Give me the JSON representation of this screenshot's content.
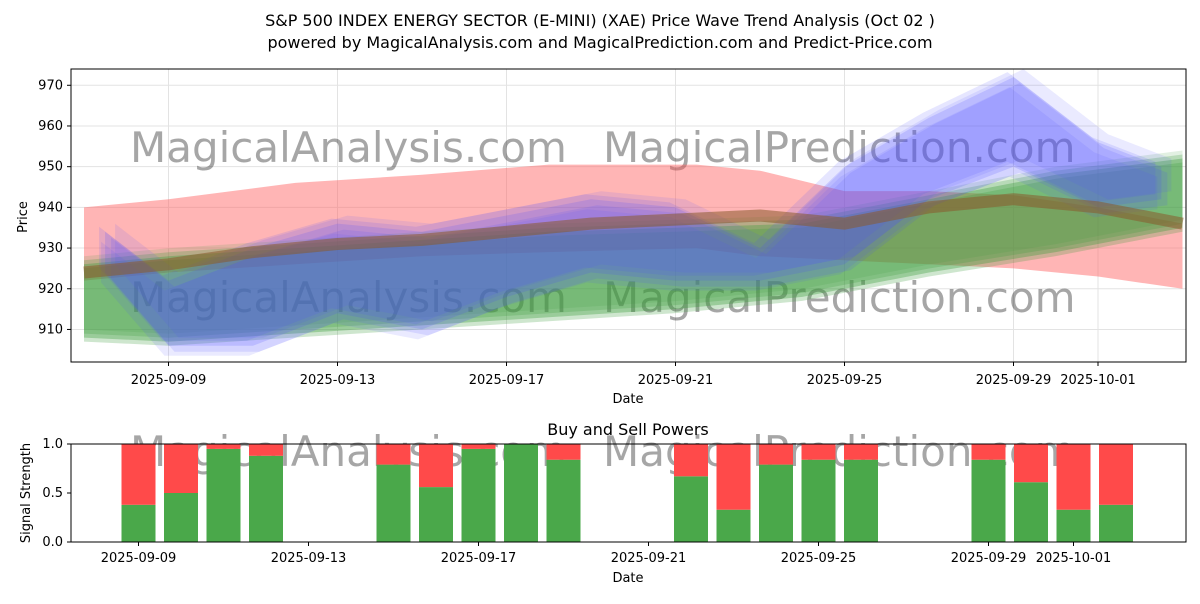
{
  "title_line1": "S&P 500 INDEX ENERGY SECTOR (E-MINI) (XAE) Price Wave Trend Analysis (Oct 02 )",
  "title_line2": "powered by MagicalAnalysis.com and MagicalPrediction.com and Predict-Price.com",
  "watermarks": [
    "MagicalAnalysis.com",
    "MagicalPrediction.com",
    "MagicalAnalysis.com",
    "MagicalPrediction.com"
  ],
  "colors": {
    "red_band": "#ff5a5a",
    "green_band": "#3a9a3a",
    "blue_band": "#5050ff",
    "brown_line": "#8b5a2b",
    "buy": "#4aa84a",
    "sell": "#ff4a4a"
  },
  "chart_data": [
    {
      "type": "area",
      "title": "",
      "xlabel": "Date",
      "ylabel": "Price",
      "ylim": [
        902,
        974
      ],
      "x_tick_labels": [
        "2025-09-09",
        "2025-09-13",
        "2025-09-17",
        "2025-09-21",
        "2025-09-25",
        "2025-09-29",
        "2025-10-01"
      ],
      "x_tick_days": [
        2,
        6,
        10,
        14,
        18,
        22,
        24
      ],
      "y_ticks": [
        910,
        920,
        930,
        940,
        950,
        960,
        970
      ],
      "series": [
        {
          "name": "red_band",
          "x": [
            0,
            2,
            5,
            8,
            11,
            14.5,
            16,
            18,
            20,
            22,
            24,
            26
          ],
          "upper": [
            940,
            942,
            946,
            948,
            950.5,
            950.5,
            949,
            944,
            944,
            943,
            940,
            936
          ],
          "lower": [
            922,
            924,
            926,
            928,
            929,
            930,
            928,
            927,
            926,
            925,
            923,
            920
          ]
        },
        {
          "name": "green_band",
          "x": [
            0,
            2,
            5,
            8,
            11,
            14,
            17,
            20,
            23,
            26
          ],
          "upper": [
            926,
            928,
            930,
            932,
            934,
            935,
            936,
            942,
            948,
            952
          ],
          "lower": [
            908,
            907,
            909,
            911,
            913,
            915,
            918,
            924,
            929,
            935
          ]
        },
        {
          "name": "blue_band",
          "x": [
            0.5,
            2,
            4,
            6,
            8,
            10,
            12,
            14,
            16,
            18,
            20,
            22,
            24,
            25.5
          ],
          "upper": [
            934,
            922,
            930,
            936,
            934,
            938,
            942,
            940,
            930,
            950,
            962,
            972,
            956,
            950
          ],
          "lower": [
            924,
            906,
            906,
            914,
            910,
            918,
            924,
            922,
            922,
            926,
            942,
            950,
            940,
            942
          ]
        },
        {
          "name": "trend_line",
          "x": [
            0,
            2,
            4,
            6,
            8,
            10,
            12,
            14,
            16,
            18,
            20,
            22,
            24,
            26
          ],
          "values": [
            924,
            926,
            929,
            931,
            932,
            934,
            936,
            937,
            938,
            936,
            940,
            942,
            940,
            936
          ]
        }
      ]
    },
    {
      "type": "bar",
      "title": "Buy and Sell Powers",
      "xlabel": "Date",
      "ylabel": "Signal Strength",
      "ylim": [
        0,
        1
      ],
      "y_ticks": [
        0.0,
        0.5,
        1.0
      ],
      "y_tick_labels": [
        "0.0",
        "0.5",
        "1.0"
      ],
      "x_tick_labels": [
        "2025-09-09",
        "2025-09-13",
        "2025-09-17",
        "2025-09-21",
        "2025-09-25",
        "2025-09-29",
        "2025-10-01"
      ],
      "x_tick_days": [
        2,
        6,
        10,
        14,
        18,
        22,
        24
      ],
      "x": [
        2,
        3,
        4,
        5,
        8,
        9,
        10,
        11,
        12,
        15,
        16,
        17,
        18,
        19,
        22,
        23,
        24,
        25
      ],
      "series": [
        {
          "name": "Buy",
          "values": [
            0.38,
            0.5,
            0.95,
            0.88,
            0.79,
            0.56,
            0.95,
            1.0,
            0.84,
            0.67,
            0.33,
            0.79,
            0.84,
            0.84,
            0.84,
            0.61,
            0.33,
            0.38
          ]
        },
        {
          "name": "Sell",
          "values": [
            0.62,
            0.5,
            0.05,
            0.12,
            0.21,
            0.44,
            0.05,
            0.0,
            0.16,
            0.33,
            0.67,
            0.21,
            0.16,
            0.16,
            0.16,
            0.39,
            0.67,
            0.62
          ]
        }
      ]
    }
  ]
}
